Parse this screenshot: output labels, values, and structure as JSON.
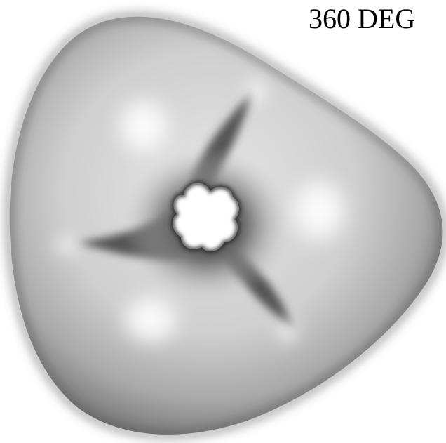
{
  "caption": "360 DEG",
  "render": {
    "subject": "shaded-triangular-toroid-surface",
    "colors": {
      "background": "#ffffff",
      "surface_highlight": "#ffffff",
      "surface_mid": "#bdbdbd",
      "surface_shadow": "#3f3f3f",
      "text": "#000000"
    }
  }
}
